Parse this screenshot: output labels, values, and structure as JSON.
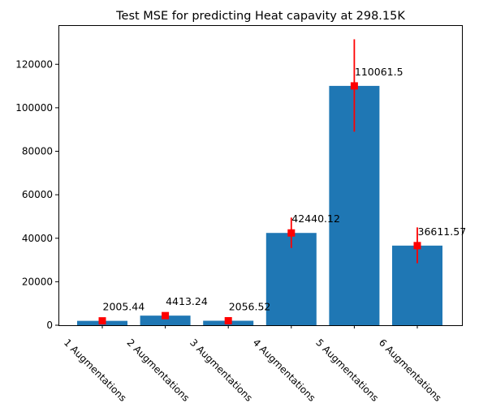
{
  "chart_data": {
    "type": "bar",
    "title": "Test MSE for predicting Heat capavity at 298.15K",
    "xlabel": "",
    "ylabel": "",
    "categories": [
      "1 Augmentations",
      "2 Augmentations",
      "3 Augmentations",
      "4 Augmentations",
      "5 Augmentations",
      "6 Augmentations"
    ],
    "values": [
      2005.44,
      4413.24,
      2056.52,
      42440.12,
      110061.5,
      36611.57
    ],
    "data_labels": [
      "2005.44",
      "4413.24",
      "2056.52",
      "42440.12",
      "110061.5",
      "36611.57"
    ],
    "error_low": [
      400,
      3500,
      400,
      35500,
      89000,
      28500
    ],
    "error_high": [
      3300,
      5600,
      3300,
      49500,
      131500,
      45000
    ],
    "ylim": [
      0,
      138000
    ],
    "yticks": [
      0,
      20000,
      40000,
      60000,
      80000,
      100000,
      120000
    ],
    "ytick_labels": [
      "0",
      "20000",
      "40000",
      "60000",
      "80000",
      "100000",
      "120000"
    ],
    "bar_color": "#1f77b4",
    "error_color": "#ff0000",
    "grid": false,
    "legend": "none"
  }
}
